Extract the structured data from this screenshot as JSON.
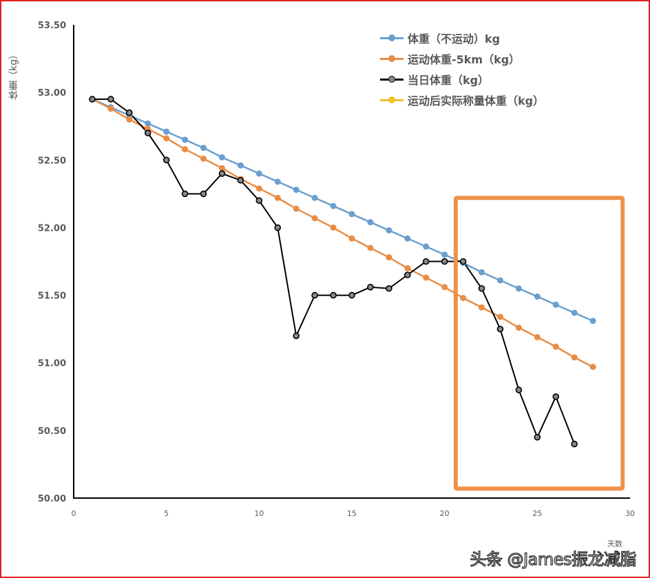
{
  "chart_data": {
    "type": "line",
    "title": "",
    "xlabel": "天数",
    "ylabel": "体重（kg）",
    "xlim": [
      0,
      30
    ],
    "ylim": [
      50.0,
      53.5
    ],
    "x_ticks": [
      "0",
      "5",
      "10",
      "15",
      "20",
      "25",
      "30"
    ],
    "y_ticks": [
      "50.00",
      "50.50",
      "51.00",
      "51.50",
      "52.00",
      "52.50",
      "53.00",
      "53.50"
    ],
    "grid": false,
    "legend_position": "top-right",
    "series": [
      {
        "name": "体重（不运动）kg",
        "color": "#6a9fce",
        "marker": "filled-circle",
        "x": [
          1,
          2,
          3,
          4,
          5,
          6,
          7,
          8,
          9,
          10,
          11,
          12,
          13,
          14,
          15,
          16,
          17,
          18,
          19,
          20,
          21,
          22,
          23,
          24,
          25,
          26,
          27,
          28
        ],
        "values": [
          52.95,
          52.89,
          52.83,
          52.77,
          52.71,
          52.65,
          52.59,
          52.52,
          52.46,
          52.4,
          52.34,
          52.28,
          52.22,
          52.16,
          52.1,
          52.04,
          51.98,
          51.92,
          51.86,
          51.8,
          51.74,
          51.67,
          51.61,
          51.55,
          51.49,
          51.43,
          51.37,
          51.31
        ]
      },
      {
        "name": "运动体重-5km（kg）",
        "color": "#e88d45",
        "marker": "filled-circle",
        "x": [
          1,
          2,
          3,
          4,
          5,
          6,
          7,
          8,
          9,
          10,
          11,
          12,
          13,
          14,
          15,
          16,
          17,
          18,
          19,
          20,
          21,
          22,
          23,
          24,
          25,
          26,
          27,
          28
        ],
        "values": [
          52.95,
          52.88,
          52.8,
          52.73,
          52.66,
          52.58,
          52.51,
          52.44,
          52.36,
          52.29,
          52.22,
          52.14,
          52.07,
          52.0,
          51.92,
          51.85,
          51.78,
          51.7,
          51.63,
          51.56,
          51.48,
          51.41,
          51.34,
          51.26,
          51.19,
          51.12,
          51.04,
          50.97
        ]
      },
      {
        "name": "当日体重（kg）",
        "color": "#000000",
        "marker": "hollow-circle-grey",
        "x": [
          1,
          2,
          3,
          4,
          5,
          6,
          7,
          8,
          9,
          10,
          11,
          12,
          13,
          14,
          15,
          16,
          17,
          18,
          19,
          20,
          21,
          22,
          23,
          24,
          25,
          26,
          27
        ],
        "values": [
          52.95,
          52.95,
          52.85,
          52.7,
          52.5,
          52.25,
          52.25,
          52.4,
          52.35,
          52.2,
          52.0,
          51.2,
          51.5,
          51.5,
          51.5,
          51.56,
          51.55,
          51.65,
          51.75,
          51.75,
          51.75,
          51.55,
          51.25,
          50.8,
          50.45,
          50.75,
          50.4
        ]
      },
      {
        "name": "运动后实际称量体重（kg）",
        "color": "#f5c02a",
        "marker": "filled-circle",
        "x": [],
        "values": []
      }
    ],
    "annotations": [
      {
        "type": "highlight-rectangle",
        "color": "#f0914a",
        "x_range": [
          20.6,
          29.6
        ],
        "y_range": [
          50.07,
          52.22
        ]
      }
    ]
  },
  "axis": {
    "ylabel": "体重（kg）",
    "xlabel": "天数"
  },
  "legend": {
    "items": [
      {
        "label": "体重（不运动）kg",
        "color": "#6a9fce",
        "dot_fill": "#6a9fce",
        "dot_border": "#6a9fce"
      },
      {
        "label": "运动体重-5km（kg）",
        "color": "#e88d45",
        "dot_fill": "#e88d45",
        "dot_border": "#e88d45"
      },
      {
        "label": "当日体重（kg）",
        "color": "#000000",
        "dot_fill": "#888888",
        "dot_border": "#000000"
      },
      {
        "label": "运动后实际称量体重（kg）",
        "color": "#f5c02a",
        "dot_fill": "#f5c02a",
        "dot_border": "#f5c02a"
      }
    ]
  },
  "watermark": "头条 @James振龙减脂",
  "colors": {
    "frame_border": "#e02020",
    "highlight_box": "#f0914a"
  }
}
